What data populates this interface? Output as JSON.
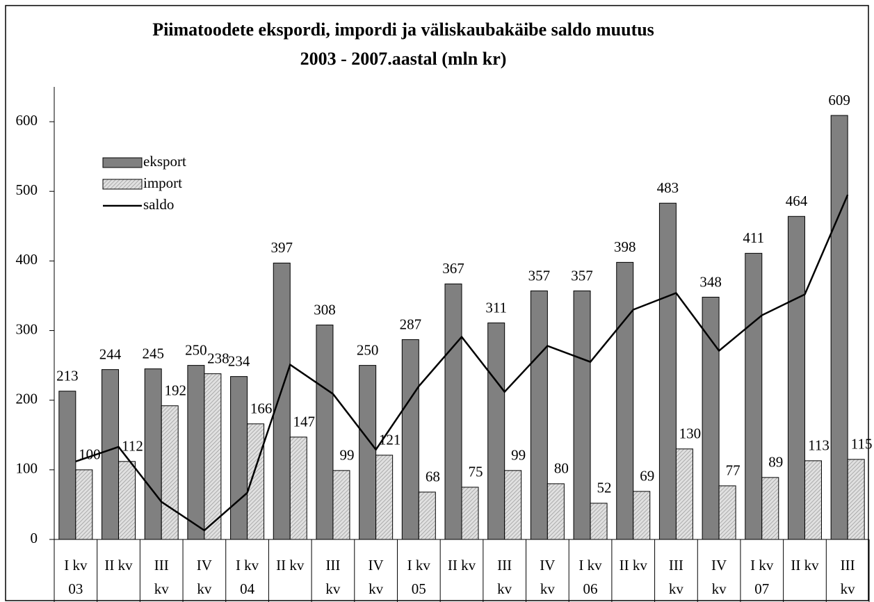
{
  "chart_data": {
    "type": "bar",
    "title": "Piimatoodete ekspordi, impordi ja väliskaubakäibe saldo muutus\n2003 - 2007.aastal (mln kr)",
    "categories": [
      "I kv\n03",
      "II kv",
      "III\nkv",
      "IV\nkv",
      "I kv\n04",
      "II kv",
      "III\nkv",
      "IV\nkv",
      "I kv\n05",
      "II kv",
      "III\nkv",
      "IV\nkv",
      "I kv\n06",
      "II kv",
      "III\nkv",
      "IV\nkv",
      "I kv\n07",
      "II kv",
      "III\nkv"
    ],
    "series": [
      {
        "name": "eksport",
        "type": "bar",
        "color": "#808080",
        "values": [
          213,
          244,
          245,
          250,
          234,
          397,
          308,
          250,
          287,
          367,
          311,
          357,
          357,
          398,
          483,
          348,
          411,
          464,
          609
        ]
      },
      {
        "name": "import",
        "type": "bar",
        "color": "#d0d0d0",
        "values": [
          100,
          112,
          192,
          238,
          166,
          147,
          99,
          121,
          68,
          75,
          99,
          80,
          52,
          69,
          130,
          77,
          89,
          113,
          115
        ]
      },
      {
        "name": "saldo",
        "type": "line",
        "color": "#000000",
        "values": [
          112,
          133,
          54,
          13,
          67,
          251,
          209,
          129,
          220,
          291,
          212,
          278,
          255,
          330,
          354,
          271,
          322,
          352,
          495
        ]
      }
    ],
    "ylim": [
      0,
      650
    ],
    "yticks": [
      0,
      100,
      200,
      300,
      400,
      500,
      600
    ],
    "legend": "upper left"
  }
}
